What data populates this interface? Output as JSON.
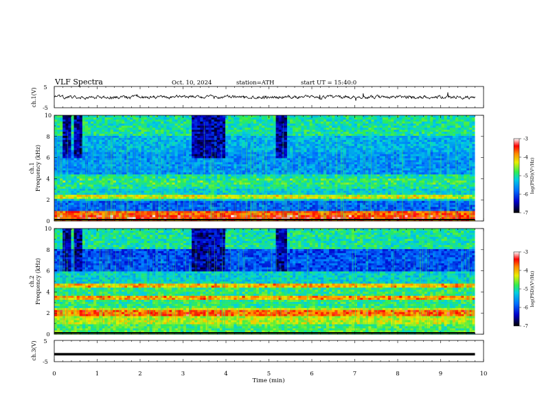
{
  "header": {
    "title": "VLF  Spectra",
    "date": "Oct. 10, 2024",
    "station": "station=ATH",
    "start": "start  UT  =   15:40:0"
  },
  "chart_data": [
    {
      "type": "line",
      "name": "ch1-waveform",
      "ylabel": "ch.1(V)",
      "ylim": [
        -5,
        5
      ],
      "yticks": [
        "5",
        "-5"
      ],
      "xlim": [
        0,
        9.8
      ],
      "note_values": "waveform oscillates roughly between -1 and 1 V with spikes"
    },
    {
      "type": "heatmap",
      "name": "ch1-spectrogram",
      "ylabel_line1": "ch.1",
      "ylabel_line2": "Frequency (kHz)",
      "yticks": [
        "0",
        "2",
        "4",
        "6",
        "8",
        "10"
      ],
      "ylim": [
        0,
        10
      ],
      "xlim": [
        0,
        9.8
      ],
      "colorbar": {
        "label": "log(PSD)(V²/Hz)",
        "ticks": [
          "-3",
          "-4",
          "-5",
          "-6",
          "-7"
        ],
        "range": [
          -7,
          -3
        ]
      },
      "bands_khz": [
        {
          "f": 0.4,
          "level": -3.5
        },
        {
          "f": 0.8,
          "level": -3.8
        },
        {
          "f": 1.4,
          "level": -5.9
        },
        {
          "f": 2.3,
          "level": -4.3
        },
        {
          "f": 3.8,
          "level": -4.9
        },
        {
          "f": 6.0,
          "level": -5.9
        }
      ],
      "dark_bursts_min": [
        0.3,
        0.55,
        3.35,
        3.6,
        3.85,
        5.3
      ]
    },
    {
      "type": "heatmap",
      "name": "ch2-spectrogram",
      "ylabel_line1": "ch.2",
      "ylabel_line2": "Frequency (kHz)",
      "yticks": [
        "0",
        "2",
        "4",
        "6",
        "8",
        "10"
      ],
      "ylim": [
        0,
        10
      ],
      "xlim": [
        0,
        9.8
      ],
      "colorbar": {
        "label": "log(PSD)(V²/Hz)",
        "ticks": [
          "-3",
          "-4",
          "-5",
          "-6",
          "-7"
        ],
        "range": [
          -7,
          -3
        ]
      },
      "bands_khz": [
        {
          "f": 2.0,
          "level": -3.7
        },
        {
          "f": 3.5,
          "level": -3.9
        },
        {
          "f": 4.6,
          "level": -4.0
        },
        {
          "f": 7.0,
          "level": -6.0
        }
      ],
      "dark_bursts_min": [
        0.3,
        0.55,
        3.35,
        3.6,
        3.85,
        5.3
      ]
    },
    {
      "type": "line",
      "name": "ch3-waveform",
      "ylabel": "ch.3(V)",
      "ylim": [
        -5,
        5
      ],
      "yticks": [
        "5",
        "-5"
      ],
      "xlim": [
        0,
        9.8
      ],
      "values_flat": -1.5
    }
  ],
  "xaxis": {
    "label": "Time  (min)",
    "ticks": [
      "0",
      "1",
      "2",
      "3",
      "4",
      "5",
      "6",
      "7",
      "8",
      "9",
      "10"
    ],
    "range": [
      0,
      10
    ]
  },
  "colors": {
    "scale": [
      "#000000",
      "#0000cc",
      "#0055ff",
      "#00bfff",
      "#00e5a0",
      "#33ee33",
      "#ddee00",
      "#ff9900",
      "#ff0000",
      "#ffffff"
    ]
  }
}
